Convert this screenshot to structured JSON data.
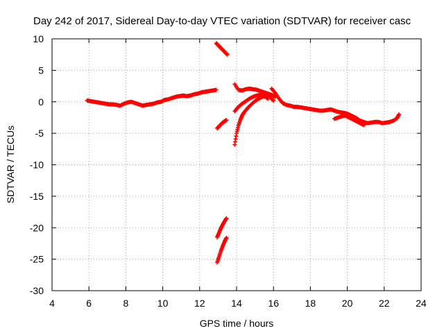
{
  "chart_data": {
    "type": "scatter",
    "title": "Day 242 of 2017, Sidereal Day-to-day VTEC variation (SDTVAR) for receiver casc",
    "xlabel": "GPS time / hours",
    "ylabel": "SDTVAR / TECUs",
    "xlim": [
      4,
      24
    ],
    "ylim": [
      -30,
      10
    ],
    "xticks": [
      "4",
      "6",
      "8",
      "10",
      "12",
      "14",
      "16",
      "18",
      "20",
      "22",
      "24"
    ],
    "yticks": [
      "10",
      "5",
      "0",
      "-5",
      "-10",
      "-15",
      "-20",
      "-25",
      "-30"
    ],
    "grid": true,
    "legend": "none",
    "series_color": "#ff0000",
    "marker": "plus",
    "series": [
      {
        "name": "main-arc",
        "x": [
          5.9,
          6.1,
          6.3,
          6.5,
          6.7,
          6.9,
          7.1,
          7.3,
          7.5,
          7.7,
          7.9,
          8.1,
          8.3,
          8.5,
          8.7,
          8.9,
          9.1,
          9.3,
          9.5,
          9.7,
          9.9,
          10.1,
          10.3,
          10.5,
          10.7,
          10.9,
          11.1,
          11.3,
          11.5,
          11.7,
          11.9,
          12.1,
          12.3,
          12.5,
          12.7,
          12.9
        ],
        "y": [
          0.2,
          0.1,
          0,
          -0.1,
          -0.2,
          -0.3,
          -0.4,
          -0.4,
          -0.5,
          -0.6,
          -0.3,
          -0.1,
          0,
          -0.2,
          -0.4,
          -0.6,
          -0.5,
          -0.4,
          -0.3,
          -0.1,
          0,
          0.3,
          0.4,
          0.6,
          0.8,
          0.9,
          1,
          0.9,
          1,
          1.2,
          1.3,
          1.5,
          1.6,
          1.7,
          1.8,
          1.9
        ]
      },
      {
        "name": "arc-short-up",
        "x": [
          12.95,
          13.05,
          13.15,
          13.25,
          13.35,
          13.45
        ],
        "y": [
          -4.2,
          -3.9,
          -3.6,
          -3.3,
          -3.1,
          -2.9
        ]
      },
      {
        "name": "arc-top",
        "x": [
          12.9,
          13.0,
          13.1,
          13.2,
          13.3,
          13.4,
          13.5
        ],
        "y": [
          9.3,
          9.0,
          8.7,
          8.4,
          8.1,
          7.8,
          7.5
        ]
      },
      {
        "name": "arc-low-1",
        "x": [
          12.95,
          13.05,
          13.15,
          13.25,
          13.35,
          13.45
        ],
        "y": [
          -21.5,
          -20.8,
          -20.1,
          -19.5,
          -19.0,
          -18.5
        ]
      },
      {
        "name": "arc-low-2",
        "x": [
          12.95,
          13.05,
          13.15,
          13.25,
          13.35,
          13.45
        ],
        "y": [
          -25.5,
          -24.6,
          -23.7,
          -22.9,
          -22.2,
          -21.6
        ]
      },
      {
        "name": "arc-rise",
        "x": [
          13.9,
          14.0,
          14.1,
          14.2,
          14.3,
          14.4,
          14.6,
          14.8,
          15.0,
          15.2,
          15.4,
          15.6,
          15.8,
          16.0
        ],
        "y": [
          -6.8,
          -5.0,
          -3.8,
          -2.9,
          -2.2,
          -1.7,
          -1.0,
          -0.4,
          0.1,
          0.5,
          0.8,
          0.9,
          0.7,
          0.2
        ]
      },
      {
        "name": "arc-rise-2",
        "x": [
          13.9,
          14.1,
          14.3,
          14.5,
          14.7,
          14.9,
          15.1,
          15.3,
          15.5,
          15.7
        ],
        "y": [
          -1.5,
          -0.8,
          -0.3,
          0.1,
          0.5,
          0.8,
          1.0,
          1.1,
          0.9,
          0.5
        ]
      },
      {
        "name": "arc-plateau",
        "x": [
          13.9,
          14.1,
          14.3,
          14.5,
          14.7,
          14.9,
          15.1,
          15.3,
          15.5,
          15.7,
          15.9,
          16.1
        ],
        "y": [
          2.8,
          1.9,
          1.8,
          2.0,
          2.1,
          2.0,
          1.9,
          1.7,
          1.5,
          1.3,
          1.1,
          0.8
        ]
      },
      {
        "name": "arc-desc",
        "x": [
          15.9,
          16.1,
          16.3,
          16.5,
          16.7,
          16.9,
          17.1,
          17.3,
          17.5,
          17.7,
          17.9,
          18.1,
          18.3,
          18.5,
          18.7,
          18.9,
          19.1,
          19.3,
          19.5,
          19.7,
          19.9,
          20.1,
          20.3,
          20.5,
          20.7,
          20.9,
          21.1,
          21.3,
          21.5,
          21.7,
          21.9,
          22.1,
          22.3,
          22.5,
          22.7,
          22.8
        ],
        "y": [
          2.1,
          1.4,
          0.5,
          -0.2,
          -0.5,
          -0.6,
          -0.8,
          -0.8,
          -0.9,
          -1.0,
          -1.1,
          -1.2,
          -1.3,
          -1.4,
          -1.4,
          -1.3,
          -1.2,
          -1.4,
          -1.6,
          -1.7,
          -1.8,
          -2.0,
          -2.3,
          -2.6,
          -3.0,
          -3.2,
          -3.4,
          -3.3,
          -3.2,
          -3.2,
          -3.4,
          -3.3,
          -3.2,
          -3.0,
          -2.6,
          -2.0
        ]
      },
      {
        "name": "arc-desc-2",
        "x": [
          19.3,
          19.5,
          19.7,
          19.9,
          20.1,
          20.3,
          20.5,
          20.7,
          20.9
        ],
        "y": [
          -2.7,
          -2.5,
          -2.3,
          -2.2,
          -2.5,
          -2.8,
          -3.1,
          -3.4,
          -3.7
        ]
      }
    ]
  }
}
